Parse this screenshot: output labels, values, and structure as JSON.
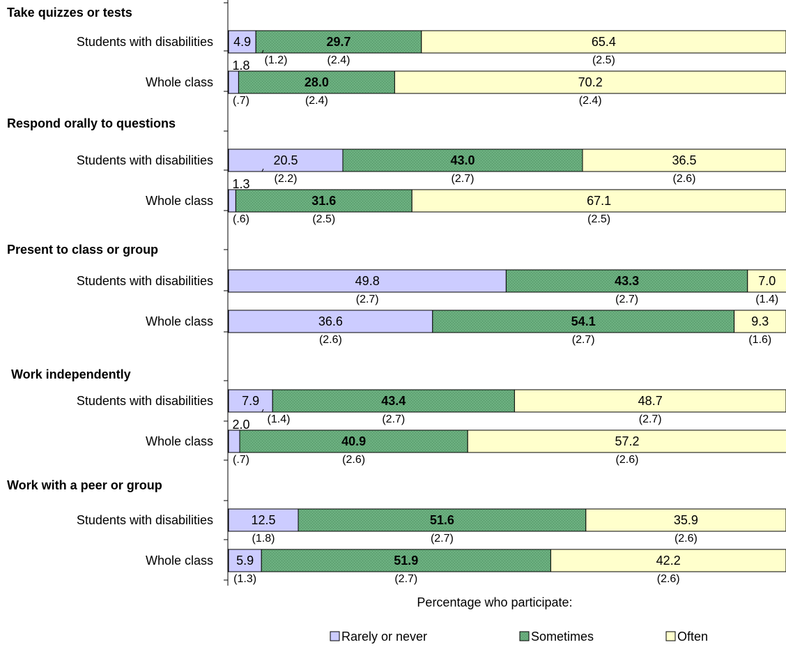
{
  "chart_data": {
    "type": "bar",
    "orientation": "horizontal",
    "stacked": true,
    "xlim": [
      0,
      100
    ],
    "legend_title": "Percentage who participate:",
    "legend_position": "bottom",
    "colors": {
      "rarely": "#ccccff",
      "sometimes": "#66aa7a",
      "often": "#ffffcc",
      "outline": "#000000"
    },
    "series": [
      {
        "name": "Rarely or never",
        "key": "rarely"
      },
      {
        "name": "Sometimes",
        "key": "sometimes"
      },
      {
        "name": "Often",
        "key": "often"
      }
    ],
    "groups": [
      {
        "title": "Take quizzes or tests",
        "rows": [
          {
            "label": "Students with disabilities",
            "values": [
              4.9,
              29.7,
              65.4
            ],
            "value_labels": [
              "4.9",
              "29.7",
              "65.4"
            ],
            "se": [
              "(1.2)",
              "(2.4)",
              "(2.5)"
            ],
            "extra_label": ""
          },
          {
            "label": "Whole class",
            "values": [
              1.8,
              28.0,
              70.2
            ],
            "value_labels": [
              "",
              "28.0",
              "70.2"
            ],
            "se": [
              "(.7)",
              "(2.4)",
              "(2.4)"
            ],
            "extra_label": "1.8"
          }
        ]
      },
      {
        "title": "Respond orally to questions",
        "rows": [
          {
            "label": "Students with disabilities",
            "values": [
              20.5,
              43.0,
              36.5
            ],
            "value_labels": [
              "20.5",
              "43.0",
              "36.5"
            ],
            "se": [
              "(2.2)",
              "(2.7)",
              "(2.6)"
            ],
            "extra_label": ""
          },
          {
            "label": "Whole class",
            "values": [
              1.3,
              31.6,
              67.1
            ],
            "value_labels": [
              "",
              "31.6",
              "67.1"
            ],
            "se": [
              "(.6)",
              "(2.5)",
              "(2.5)"
            ],
            "extra_label": "1.3"
          }
        ]
      },
      {
        "title": "Present to class or group",
        "rows": [
          {
            "label": "Students with disabilities",
            "values": [
              49.8,
              43.3,
              7.0
            ],
            "value_labels": [
              "49.8",
              "43.3",
              "7.0"
            ],
            "se": [
              "(2.7)",
              "(2.7)",
              "(1.4)"
            ],
            "extra_label": ""
          },
          {
            "label": "Whole class",
            "values": [
              36.6,
              54.1,
              9.3
            ],
            "value_labels": [
              "36.6",
              "54.1",
              "9.3"
            ],
            "se": [
              "(2.6)",
              "(2.7)",
              "(1.6)"
            ],
            "extra_label": ""
          }
        ]
      },
      {
        "title": "Work independently",
        "rows": [
          {
            "label": "Students with disabilities",
            "values": [
              7.9,
              43.4,
              48.7
            ],
            "value_labels": [
              "7.9",
              "43.4",
              "48.7"
            ],
            "se": [
              "(1.4)",
              "(2.7)",
              "(2.7)"
            ],
            "extra_label": ""
          },
          {
            "label": "Whole class",
            "values": [
              2.0,
              40.9,
              57.2
            ],
            "value_labels": [
              "",
              "40.9",
              "57.2"
            ],
            "se": [
              "(.7)",
              "(2.6)",
              "(2.6)"
            ],
            "extra_label": "2.0"
          }
        ]
      },
      {
        "title": "Work with a peer or group",
        "rows": [
          {
            "label": "Students with disabilities",
            "values": [
              12.5,
              51.6,
              35.9
            ],
            "value_labels": [
              "12.5",
              "51.6",
              "35.9"
            ],
            "se": [
              "(1.8)",
              "(2.7)",
              "(2.6)"
            ],
            "extra_label": ""
          },
          {
            "label": "Whole class",
            "values": [
              5.9,
              51.9,
              42.2
            ],
            "value_labels": [
              "5.9",
              "51.9",
              "42.2"
            ],
            "se": [
              "(1.3)",
              "(2.7)",
              "(2.6)"
            ],
            "extra_label": ""
          }
        ]
      }
    ]
  }
}
